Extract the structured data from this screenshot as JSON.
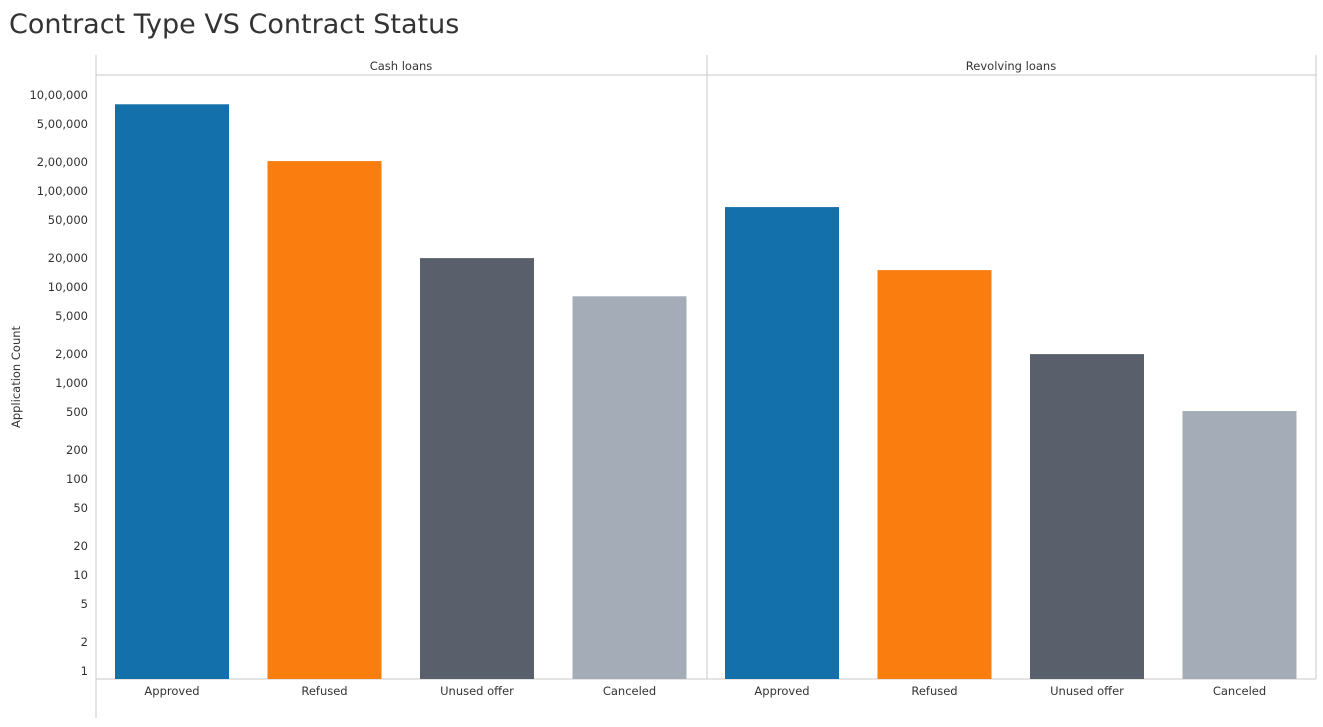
{
  "chart_data": {
    "type": "bar",
    "title": "Contract Type VS Contract Status",
    "ylabel": "Application Count",
    "xlabel": "",
    "yscale": "log",
    "ylim": [
      0.82,
      1300000
    ],
    "yticks": [
      {
        "value": 1000000,
        "label": "10,00,000"
      },
      {
        "value": 500000,
        "label": "5,00,000"
      },
      {
        "value": 200000,
        "label": "2,00,000"
      },
      {
        "value": 100000,
        "label": "1,00,000"
      },
      {
        "value": 50000,
        "label": "50,000"
      },
      {
        "value": 20000,
        "label": "20,000"
      },
      {
        "value": 10000,
        "label": "10,000"
      },
      {
        "value": 5000,
        "label": "5,000"
      },
      {
        "value": 2000,
        "label": "2,000"
      },
      {
        "value": 1000,
        "label": "1,000"
      },
      {
        "value": 500,
        "label": "500"
      },
      {
        "value": 200,
        "label": "200"
      },
      {
        "value": 100,
        "label": "100"
      },
      {
        "value": 50,
        "label": "50"
      },
      {
        "value": 20,
        "label": "20"
      },
      {
        "value": 10,
        "label": "10"
      },
      {
        "value": 5,
        "label": "5"
      },
      {
        "value": 2,
        "label": "2"
      },
      {
        "value": 1,
        "label": "1"
      }
    ],
    "colors": {
      "Approved": "#1470ab",
      "Refused": "#fa7d0f",
      "Unused offer": "#5a606b",
      "Canceled": "#a3acb7"
    },
    "grid": false,
    "legend": "none",
    "panels": [
      {
        "name": "Cash loans",
        "categories": [
          "Approved",
          "Refused",
          "Unused offer",
          "Canceled"
        ],
        "values": [
          800000,
          205000,
          20000,
          8000
        ]
      },
      {
        "name": "Revolving loans",
        "categories": [
          "Approved",
          "Refused",
          "Unused offer",
          "Canceled"
        ],
        "values": [
          68000,
          15000,
          2000,
          510
        ]
      }
    ]
  }
}
